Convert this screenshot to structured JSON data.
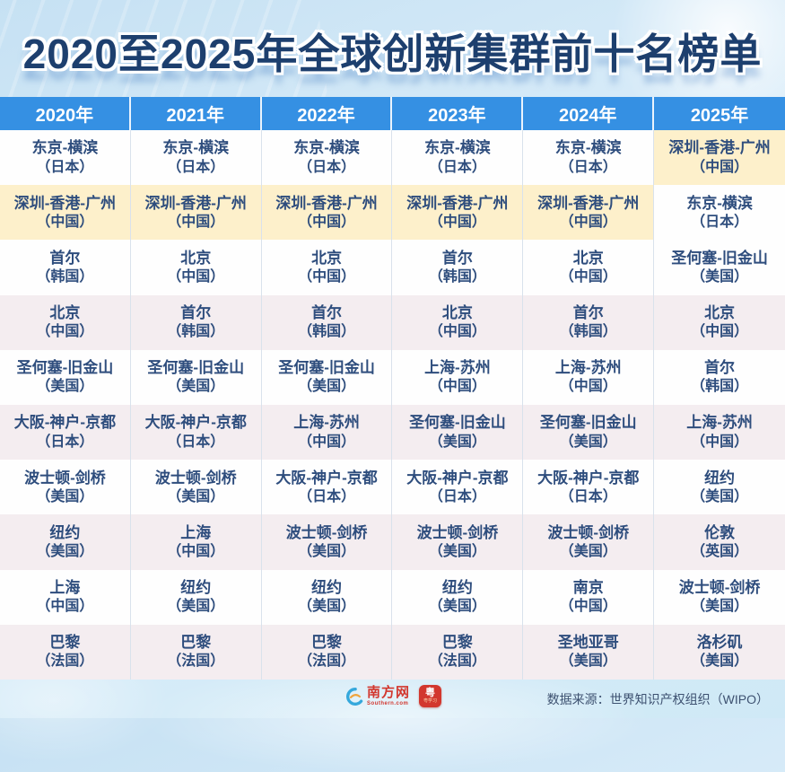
{
  "colors": {
    "page_bg_top": "#c6e1f3",
    "page_bg_mid": "#dceefa",
    "page_bg_bottom": "#cfe9f6",
    "title_text": "#1d3f6e",
    "header_bg": "#3590e3",
    "cell_text": "#2e4d7d",
    "highlight_yellow": "#fdf0cb",
    "row_pink": "#f4edf0",
    "row_white": "#fefefe",
    "brand_red": "#d2372e"
  },
  "branding": {
    "southern_net_name": "南方网",
    "southern_net_domain": "Southern.com",
    "yuexuexi_glyph": "粤",
    "yuexuexi_app_name": "粤学习"
  },
  "chart_data": {
    "type": "table",
    "title": "2020至2025年全球创新集群前十名榜单",
    "source": "数据来源：世界知识产权组织（WIPO）",
    "columns": [
      "2020年",
      "2021年",
      "2022年",
      "2023年",
      "2024年",
      "2025年"
    ],
    "legend_note": "yellow highlight = 深圳-香港-广州 cluster; bg codes: w=white, p=pink, y=yellow",
    "rows": [
      [
        {
          "city": "东京-横滨",
          "country": "（日本）",
          "bg": "w"
        },
        {
          "city": "东京-横滨",
          "country": "（日本）",
          "bg": "w"
        },
        {
          "city": "东京-横滨",
          "country": "（日本）",
          "bg": "w"
        },
        {
          "city": "东京-横滨",
          "country": "（日本）",
          "bg": "w"
        },
        {
          "city": "东京-横滨",
          "country": "（日本）",
          "bg": "w"
        },
        {
          "city": "深圳-香港-广州",
          "country": "（中国）",
          "bg": "y"
        }
      ],
      [
        {
          "city": "深圳-香港-广州",
          "country": "（中国）",
          "bg": "y"
        },
        {
          "city": "深圳-香港-广州",
          "country": "（中国）",
          "bg": "y"
        },
        {
          "city": "深圳-香港-广州",
          "country": "（中国）",
          "bg": "y"
        },
        {
          "city": "深圳-香港-广州",
          "country": "（中国）",
          "bg": "y"
        },
        {
          "city": "深圳-香港-广州",
          "country": "（中国）",
          "bg": "y"
        },
        {
          "city": "东京-横滨",
          "country": "（日本）",
          "bg": "w"
        }
      ],
      [
        {
          "city": "首尔",
          "country": "（韩国）",
          "bg": "w"
        },
        {
          "city": "北京",
          "country": "（中国）",
          "bg": "w"
        },
        {
          "city": "北京",
          "country": "（中国）",
          "bg": "w"
        },
        {
          "city": "首尔",
          "country": "（韩国）",
          "bg": "w"
        },
        {
          "city": "北京",
          "country": "（中国）",
          "bg": "w"
        },
        {
          "city": "圣何塞-旧金山",
          "country": "（美国）",
          "bg": "w"
        }
      ],
      [
        {
          "city": "北京",
          "country": "（中国）",
          "bg": "p"
        },
        {
          "city": "首尔",
          "country": "（韩国）",
          "bg": "p"
        },
        {
          "city": "首尔",
          "country": "（韩国）",
          "bg": "p"
        },
        {
          "city": "北京",
          "country": "（中国）",
          "bg": "p"
        },
        {
          "city": "首尔",
          "country": "（韩国）",
          "bg": "p"
        },
        {
          "city": "北京",
          "country": "（中国）",
          "bg": "p"
        }
      ],
      [
        {
          "city": "圣何塞-旧金山",
          "country": "（美国）",
          "bg": "w"
        },
        {
          "city": "圣何塞-旧金山",
          "country": "（美国）",
          "bg": "w"
        },
        {
          "city": "圣何塞-旧金山",
          "country": "（美国）",
          "bg": "w"
        },
        {
          "city": "上海-苏州",
          "country": "（中国）",
          "bg": "w"
        },
        {
          "city": "上海-苏州",
          "country": "（中国）",
          "bg": "w"
        },
        {
          "city": "首尔",
          "country": "（韩国）",
          "bg": "w"
        }
      ],
      [
        {
          "city": "大阪-神户-京都",
          "country": "（日本）",
          "bg": "p"
        },
        {
          "city": "大阪-神户-京都",
          "country": "（日本）",
          "bg": "p"
        },
        {
          "city": "上海-苏州",
          "country": "（中国）",
          "bg": "p"
        },
        {
          "city": "圣何塞-旧金山",
          "country": "（美国）",
          "bg": "p"
        },
        {
          "city": "圣何塞-旧金山",
          "country": "（美国）",
          "bg": "p"
        },
        {
          "city": "上海-苏州",
          "country": "（中国）",
          "bg": "p"
        }
      ],
      [
        {
          "city": "波士顿-剑桥",
          "country": "（美国）",
          "bg": "w"
        },
        {
          "city": "波士顿-剑桥",
          "country": "（美国）",
          "bg": "w"
        },
        {
          "city": "大阪-神户-京都",
          "country": "（日本）",
          "bg": "w"
        },
        {
          "city": "大阪-神户-京都",
          "country": "（日本）",
          "bg": "w"
        },
        {
          "city": "大阪-神户-京都",
          "country": "（日本）",
          "bg": "w"
        },
        {
          "city": "纽约",
          "country": "（美国）",
          "bg": "w"
        }
      ],
      [
        {
          "city": "纽约",
          "country": "（美国）",
          "bg": "p"
        },
        {
          "city": "上海",
          "country": "（中国）",
          "bg": "p"
        },
        {
          "city": "波士顿-剑桥",
          "country": "（美国）",
          "bg": "p"
        },
        {
          "city": "波士顿-剑桥",
          "country": "（美国）",
          "bg": "p"
        },
        {
          "city": "波士顿-剑桥",
          "country": "（美国）",
          "bg": "p"
        },
        {
          "city": "伦敦",
          "country": "（英国）",
          "bg": "p"
        }
      ],
      [
        {
          "city": "上海",
          "country": "（中国）",
          "bg": "w"
        },
        {
          "city": "纽约",
          "country": "（美国）",
          "bg": "w"
        },
        {
          "city": "纽约",
          "country": "（美国）",
          "bg": "w"
        },
        {
          "city": "纽约",
          "country": "（美国）",
          "bg": "w"
        },
        {
          "city": "南京",
          "country": "（中国）",
          "bg": "w"
        },
        {
          "city": "波士顿-剑桥",
          "country": "（美国）",
          "bg": "w"
        }
      ],
      [
        {
          "city": "巴黎",
          "country": "（法国）",
          "bg": "p"
        },
        {
          "city": "巴黎",
          "country": "（法国）",
          "bg": "p"
        },
        {
          "city": "巴黎",
          "country": "（法国）",
          "bg": "p"
        },
        {
          "city": "巴黎",
          "country": "（法国）",
          "bg": "p"
        },
        {
          "city": "圣地亚哥",
          "country": "（美国）",
          "bg": "p"
        },
        {
          "city": "洛杉矶",
          "country": "（美国）",
          "bg": "p"
        }
      ]
    ]
  }
}
